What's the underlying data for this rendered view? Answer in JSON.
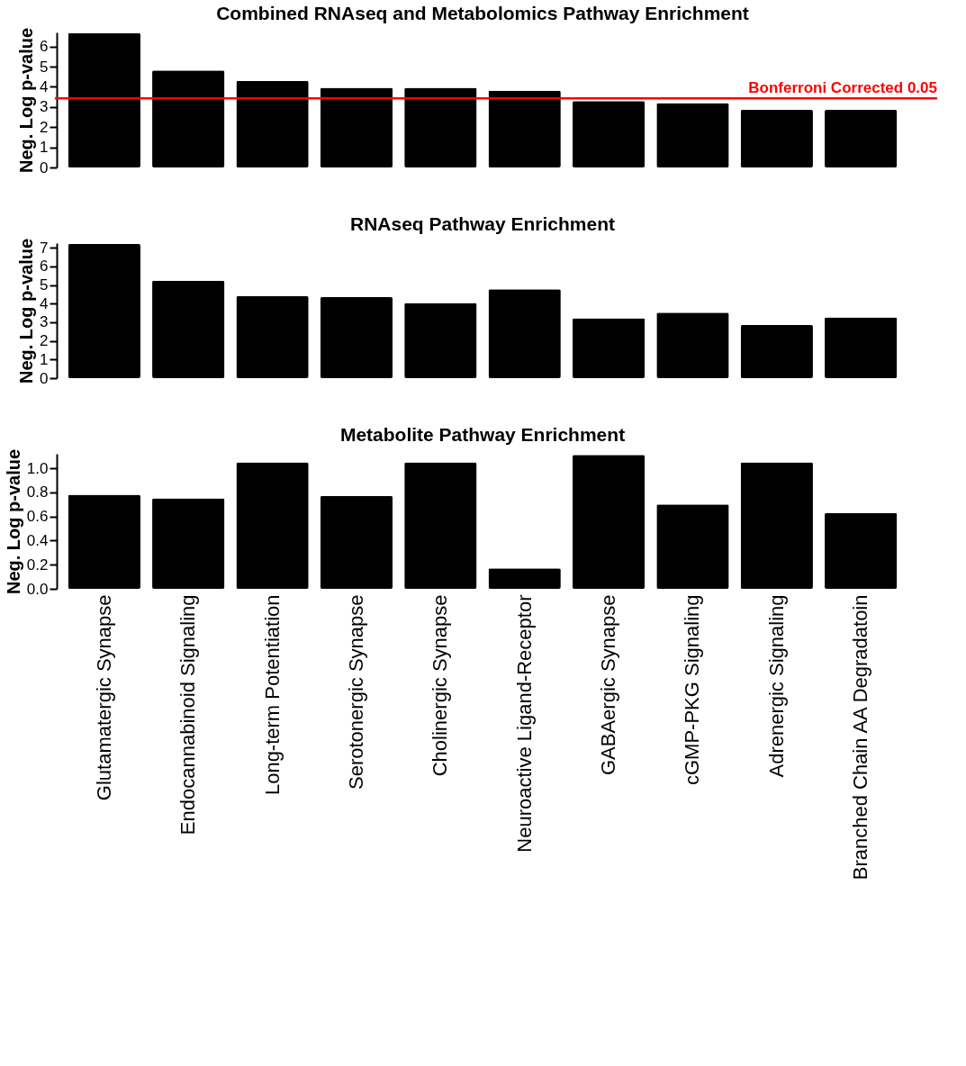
{
  "chart_data": [
    {
      "type": "bar",
      "title": "Combined RNAseq and Metabolomics Pathway Enrichment",
      "ylabel": "Neg. Log p-value",
      "categories": [
        null,
        null,
        null,
        null,
        null,
        null,
        null,
        null,
        null,
        null
      ],
      "values": [
        6.67,
        4.81,
        4.29,
        3.95,
        3.95,
        3.81,
        3.29,
        3.19,
        2.86,
        2.86
      ],
      "color": "#000000",
      "ylim": [
        0,
        6.7
      ],
      "yticks": [
        0,
        1,
        2,
        3,
        4,
        5,
        6
      ],
      "grid": false,
      "tick_labels": "y",
      "ref_lines": [
        {
          "axis": "y",
          "value": 3.43,
          "label": "Bonferroni Corrected 0.05",
          "color": "#ff0000"
        }
      ]
    },
    {
      "type": "bar",
      "title": "RNAseq Pathway Enrichment",
      "ylabel": "Neg. Log p-value",
      "categories": [
        null,
        null,
        null,
        null,
        null,
        null,
        null,
        null,
        null,
        null
      ],
      "values": [
        7.2,
        5.23,
        4.4,
        4.35,
        4.04,
        4.77,
        3.21,
        3.52,
        2.85,
        3.26
      ],
      "color": "#000000",
      "ylim": [
        0,
        7.25
      ],
      "yticks": [
        0,
        1,
        2,
        3,
        4,
        5,
        6,
        7
      ],
      "grid": false,
      "tick_labels": "y"
    },
    {
      "type": "bar",
      "title": "Metabolite Pathway Enrichment",
      "ylabel": "Neg. Log p-value",
      "categories": [
        "Glutamatergic Synapse",
        "Endocannabinoid Signaling",
        "Long-term Potentiation",
        "Serotonergic Synapse",
        "Cholinergic Synapse",
        "Neuroactive Ligand-Receptor",
        "GABAergic Synapse",
        "cGMP-PKG Signaling",
        "Adrenergic Signaling",
        "Branched Chain AA Degradatoin"
      ],
      "values": [
        0.78,
        0.75,
        1.05,
        0.77,
        1.05,
        0.17,
        1.11,
        0.7,
        1.05,
        0.63
      ],
      "color": "#000000",
      "ylim": [
        0,
        1.12
      ],
      "yticks": [
        {
          "value": 0,
          "label": "0.0"
        },
        {
          "value": 0.2,
          "label": "0.2"
        },
        {
          "value": 0.4,
          "label": "0.4"
        },
        {
          "value": 0.6,
          "label": "0.6"
        },
        {
          "value": 0.8,
          "label": "0.8"
        },
        {
          "value": 1,
          "label": "1.0"
        }
      ],
      "grid": false
    }
  ]
}
